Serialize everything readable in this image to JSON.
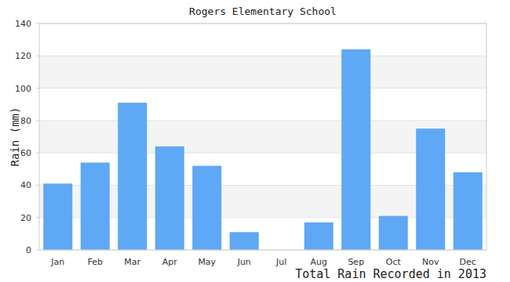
{
  "chart_data": {
    "type": "bar",
    "title": "Rogers Elementary School",
    "x_label": "Total Rain Recorded in 2013",
    "y_label": "Rain (mm)",
    "categories": [
      "Jan",
      "Feb",
      "Mar",
      "Apr",
      "May",
      "Jun",
      "Jul",
      "Aug",
      "Sep",
      "Oct",
      "Nov",
      "Dec"
    ],
    "values": [
      41,
      54,
      91,
      64,
      52,
      11,
      0,
      17,
      124,
      21,
      75,
      48
    ],
    "color": "#5fa8f5",
    "ylim": [
      0,
      140
    ],
    "yticks": [
      0,
      20,
      40,
      60,
      80,
      100,
      120,
      140
    ],
    "grid": true
  }
}
